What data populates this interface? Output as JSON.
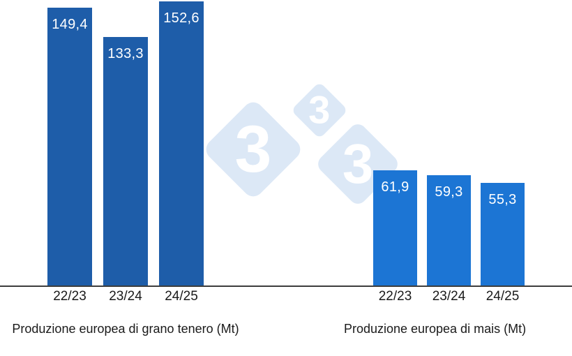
{
  "watermark": {
    "digit": "3",
    "fill": "#dce8f6",
    "digit_color": "#ffffff"
  },
  "axis": {
    "color": "#3d3d3d"
  },
  "chart_data": [
    {
      "type": "bar",
      "title": "Produzione europea di grano tenero (Mt)",
      "categories": [
        "22/23",
        "23/24",
        "24/25"
      ],
      "values": [
        149.4,
        133.3,
        152.6
      ],
      "value_labels": [
        "149,4",
        "133,3",
        "152,6"
      ],
      "bar_color": "#1e5da9",
      "label_color": "#ffffff",
      "ylim": [
        0,
        155
      ],
      "grid": false,
      "legend": "none",
      "xlabel": "",
      "ylabel": ""
    },
    {
      "type": "bar",
      "title": "Produzione europea di mais (Mt)",
      "categories": [
        "22/23",
        "23/24",
        "24/25"
      ],
      "values": [
        61.9,
        59.3,
        55.3
      ],
      "value_labels": [
        "61,9",
        "59,3",
        "55,3"
      ],
      "bar_color": "#1c75d4",
      "label_color": "#ffffff",
      "ylim": [
        0,
        155
      ],
      "grid": false,
      "legend": "none",
      "xlabel": "",
      "ylabel": ""
    }
  ]
}
